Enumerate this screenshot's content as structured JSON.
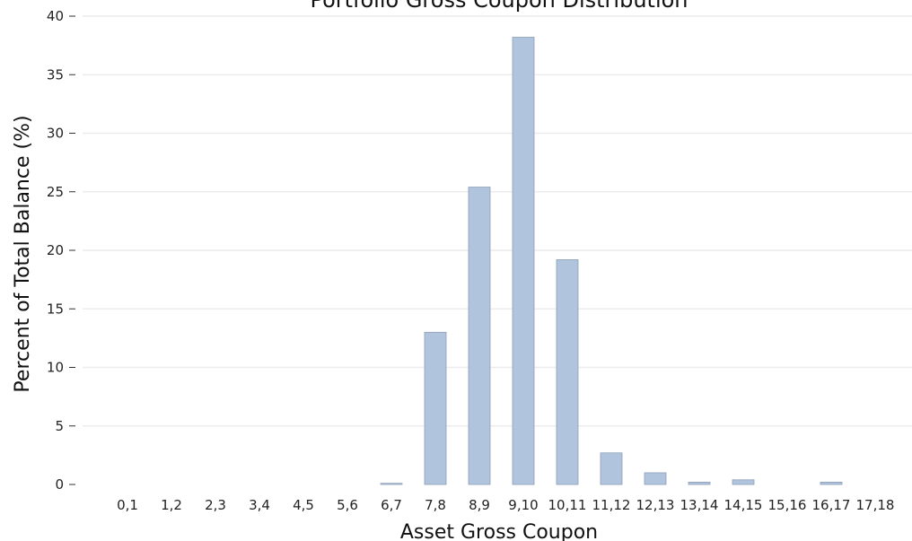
{
  "chart_data": {
    "type": "bar",
    "title": "Portfolio Gross Coupon Distribution",
    "xlabel": "Asset Gross Coupon",
    "ylabel": "Percent of Total Balance (%)",
    "ylim": [
      0,
      40
    ],
    "yticks": [
      0,
      5,
      10,
      15,
      20,
      25,
      30,
      35,
      40
    ],
    "grid": "horizontal",
    "categories": [
      "0,1",
      "1,2",
      "2,3",
      "3,4",
      "4,5",
      "5,6",
      "6,7",
      "7,8",
      "8,9",
      "9,10",
      "10,11",
      "11,12",
      "12,13",
      "13,14",
      "14,15",
      "15,16",
      "16,17",
      "17,18"
    ],
    "values": [
      0,
      0,
      0,
      0,
      0,
      0,
      0.1,
      13.0,
      25.4,
      38.2,
      19.2,
      2.7,
      1.0,
      0.2,
      0.4,
      0,
      0.2,
      0
    ],
    "colors": {
      "bar_fill": "#b0c4de",
      "bar_edge": "#8f9fb5",
      "grid": "#ececec",
      "text": "#222222"
    }
  }
}
